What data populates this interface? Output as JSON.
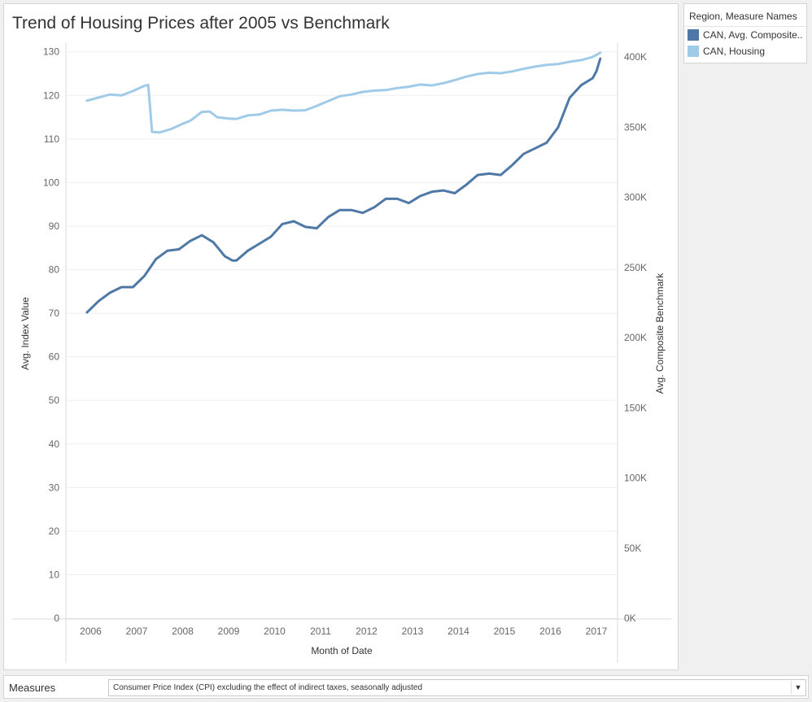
{
  "title": "Trend of Housing Prices after 2005 vs Benchmark",
  "legend": {
    "title": "Region, Measure Names",
    "items": [
      {
        "label": "CAN, Avg. Composite..",
        "color": "#4e79a7"
      },
      {
        "label": "CAN, Housing",
        "color": "#a0cbe8"
      }
    ]
  },
  "measures": {
    "label": "Measures",
    "selected": "Consumer Price Index (CPI) excluding the effect of indirect taxes, seasonally adjusted",
    "dropdown_icon": "triangle-down-icon"
  },
  "chart_data": {
    "type": "line",
    "title": "Trend of Housing Prices after 2005 vs Benchmark",
    "xlabel": "Month of Date",
    "ylabel": "Avg. Index Value",
    "y2label": "Avg. Composite Benchmark",
    "x_ticks": [
      "2006",
      "2007",
      "2008",
      "2009",
      "2010",
      "2011",
      "2012",
      "2013",
      "2014",
      "2015",
      "2016",
      "2017"
    ],
    "y_ticks": [
      "0",
      "10",
      "20",
      "30",
      "40",
      "50",
      "60",
      "70",
      "80",
      "90",
      "100",
      "110",
      "120",
      "130"
    ],
    "y2_ticks": [
      "0K",
      "50K",
      "100K",
      "150K",
      "200K",
      "250K",
      "300K",
      "350K",
      "400K"
    ],
    "ylim": [
      0,
      132
    ],
    "y2lim": [
      0,
      410000
    ],
    "grid": true,
    "legend_position": "right",
    "series": [
      {
        "name": "CAN, Housing",
        "axis": "left",
        "color": "#a0cbe8",
        "points": [
          [
            "2005-12",
            118.8
          ],
          [
            "2006-03",
            119.5
          ],
          [
            "2006-06",
            120.2
          ],
          [
            "2006-09",
            120.0
          ],
          [
            "2006-12",
            121.0
          ],
          [
            "2007-03",
            122.2
          ],
          [
            "2007-04",
            122.4
          ],
          [
            "2007-05",
            111.6
          ],
          [
            "2007-07",
            111.5
          ],
          [
            "2007-10",
            112.3
          ],
          [
            "2008-01",
            113.5
          ],
          [
            "2008-03",
            114.2
          ],
          [
            "2008-06",
            116.2
          ],
          [
            "2008-08",
            116.3
          ],
          [
            "2008-10",
            115.0
          ],
          [
            "2009-01",
            114.7
          ],
          [
            "2009-03",
            114.6
          ],
          [
            "2009-06",
            115.4
          ],
          [
            "2009-09",
            115.6
          ],
          [
            "2009-12",
            116.5
          ],
          [
            "2010-03",
            116.7
          ],
          [
            "2010-06",
            116.5
          ],
          [
            "2010-09",
            116.6
          ],
          [
            "2010-12",
            117.6
          ],
          [
            "2011-03",
            118.7
          ],
          [
            "2011-06",
            119.8
          ],
          [
            "2011-09",
            120.2
          ],
          [
            "2011-12",
            120.8
          ],
          [
            "2012-03",
            121.1
          ],
          [
            "2012-06",
            121.2
          ],
          [
            "2012-09",
            121.7
          ],
          [
            "2012-12",
            122.0
          ],
          [
            "2013-03",
            122.5
          ],
          [
            "2013-06",
            122.3
          ],
          [
            "2013-09",
            122.8
          ],
          [
            "2013-12",
            123.5
          ],
          [
            "2014-03",
            124.3
          ],
          [
            "2014-06",
            124.9
          ],
          [
            "2014-09",
            125.2
          ],
          [
            "2014-12",
            125.1
          ],
          [
            "2015-03",
            125.5
          ],
          [
            "2015-06",
            126.1
          ],
          [
            "2015-09",
            126.6
          ],
          [
            "2015-12",
            127.0
          ],
          [
            "2016-03",
            127.2
          ],
          [
            "2016-06",
            127.7
          ],
          [
            "2016-09",
            128.1
          ],
          [
            "2016-12",
            128.8
          ],
          [
            "2017-02",
            129.8
          ]
        ]
      },
      {
        "name": "CAN, Avg. Composite..",
        "axis": "right",
        "color": "#4e79a7",
        "points": [
          [
            "2005-12",
            218000
          ],
          [
            "2006-03",
            226000
          ],
          [
            "2006-06",
            232000
          ],
          [
            "2006-09",
            236000
          ],
          [
            "2006-12",
            236000
          ],
          [
            "2007-03",
            244000
          ],
          [
            "2007-06",
            256000
          ],
          [
            "2007-09",
            262000
          ],
          [
            "2007-12",
            263000
          ],
          [
            "2008-03",
            269000
          ],
          [
            "2008-06",
            273000
          ],
          [
            "2008-09",
            268000
          ],
          [
            "2008-12",
            258000
          ],
          [
            "2009-02",
            255000
          ],
          [
            "2009-03",
            255000
          ],
          [
            "2009-06",
            262000
          ],
          [
            "2009-09",
            267000
          ],
          [
            "2009-12",
            272000
          ],
          [
            "2010-03",
            281000
          ],
          [
            "2010-06",
            283000
          ],
          [
            "2010-09",
            279000
          ],
          [
            "2010-12",
            278000
          ],
          [
            "2011-03",
            286000
          ],
          [
            "2011-06",
            291000
          ],
          [
            "2011-09",
            291000
          ],
          [
            "2011-12",
            289000
          ],
          [
            "2012-03",
            293000
          ],
          [
            "2012-06",
            299000
          ],
          [
            "2012-09",
            299000
          ],
          [
            "2012-12",
            296000
          ],
          [
            "2013-03",
            301000
          ],
          [
            "2013-06",
            304000
          ],
          [
            "2013-09",
            305000
          ],
          [
            "2013-12",
            303000
          ],
          [
            "2014-03",
            309000
          ],
          [
            "2014-06",
            316000
          ],
          [
            "2014-09",
            317000
          ],
          [
            "2014-12",
            316000
          ],
          [
            "2015-03",
            323000
          ],
          [
            "2015-06",
            331000
          ],
          [
            "2015-09",
            335000
          ],
          [
            "2015-12",
            339000
          ],
          [
            "2016-03",
            350000
          ],
          [
            "2016-06",
            371000
          ],
          [
            "2016-09",
            380000
          ],
          [
            "2016-12",
            385000
          ],
          [
            "2017-01",
            390000
          ],
          [
            "2017-02",
            399000
          ]
        ]
      }
    ]
  }
}
